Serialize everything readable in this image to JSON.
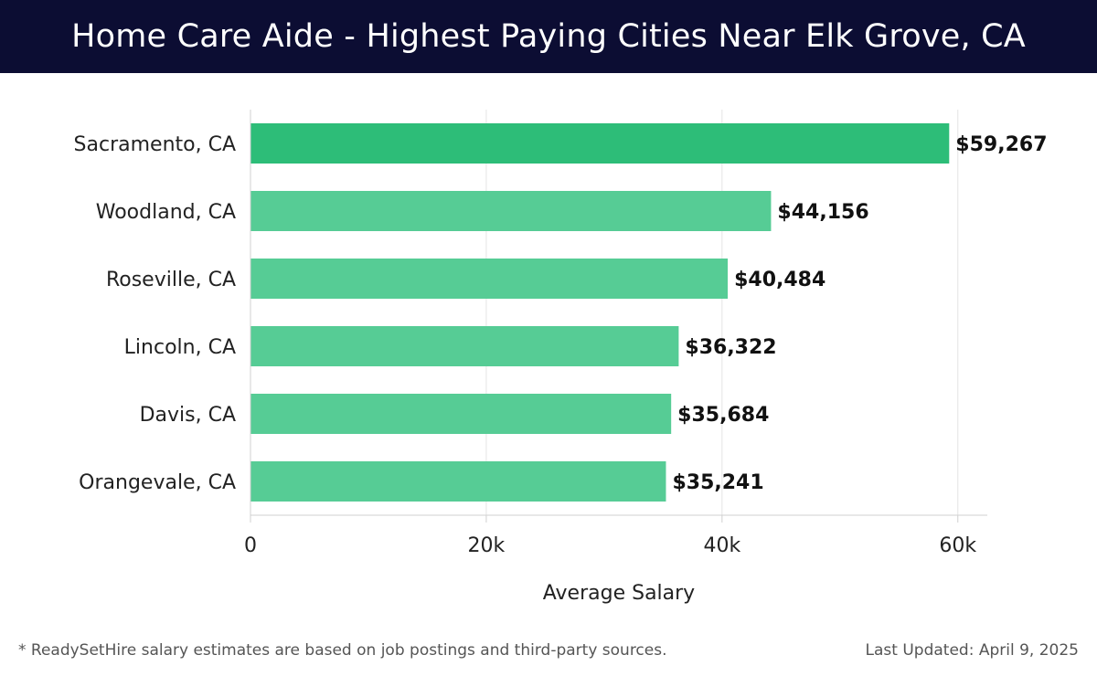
{
  "title": "Home Care Aide - Highest Paying Cities Near Elk Grove, CA",
  "footer": {
    "note": "* ReadySetHire salary estimates are based on job postings and third-party sources.",
    "updated": "Last Updated: April 9, 2025"
  },
  "colors": {
    "header_bg": "#0c0d33",
    "bar_top": "#2dbd78",
    "bar": "#56cc95"
  },
  "chart_data": {
    "type": "bar",
    "orientation": "horizontal",
    "categories": [
      "Sacramento, CA",
      "Woodland, CA",
      "Roseville, CA",
      "Lincoln, CA",
      "Davis, CA",
      "Orangevale, CA"
    ],
    "values": [
      59267,
      44156,
      40484,
      36322,
      35684,
      35241
    ],
    "value_labels": [
      "$59,267",
      "$44,156",
      "$40,484",
      "$36,322",
      "$35,684",
      "$35,241"
    ],
    "xlabel": "Average Salary",
    "ylabel": "",
    "xlim": [
      0,
      62500
    ],
    "x_ticks": [
      0,
      20000,
      40000,
      60000
    ],
    "x_tick_labels": [
      "0",
      "20k",
      "40k",
      "60k"
    ],
    "grid": "vertical"
  }
}
